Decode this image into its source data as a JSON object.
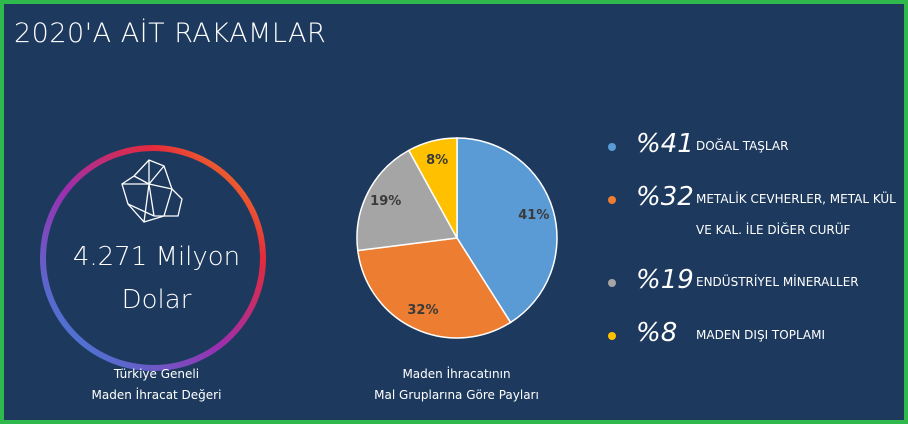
{
  "title": "2020'A AİT RAKAMLAR",
  "stat": {
    "value": "4.271 Milyon",
    "unit": "Dolar",
    "caption": [
      "Türkiye Geneli",
      "Maden İhracat Değeri"
    ]
  },
  "chart_data": {
    "type": "pie",
    "categories": [
      "DOĞAL TAŞLAR",
      "METALİK CEVHERLER, METAL KÜL VE KAL. İLE DİĞER CURÜF",
      "ENDÜSTRİYEL MİNERALLER",
      "MADEN DIŞI TOPLAMI"
    ],
    "values": [
      41,
      32,
      19,
      8
    ],
    "value_labels": [
      "41%",
      "32%",
      "19%",
      "8%"
    ],
    "legend_value_labels": [
      "%41",
      "%32",
      "%19",
      "%8"
    ],
    "colors": [
      "#5b9bd5",
      "#ed7d31",
      "#a5a5a5",
      "#ffc000"
    ],
    "caption": [
      "Maden İhracatının",
      "Mal Gruplarına Göre Payları"
    ]
  }
}
